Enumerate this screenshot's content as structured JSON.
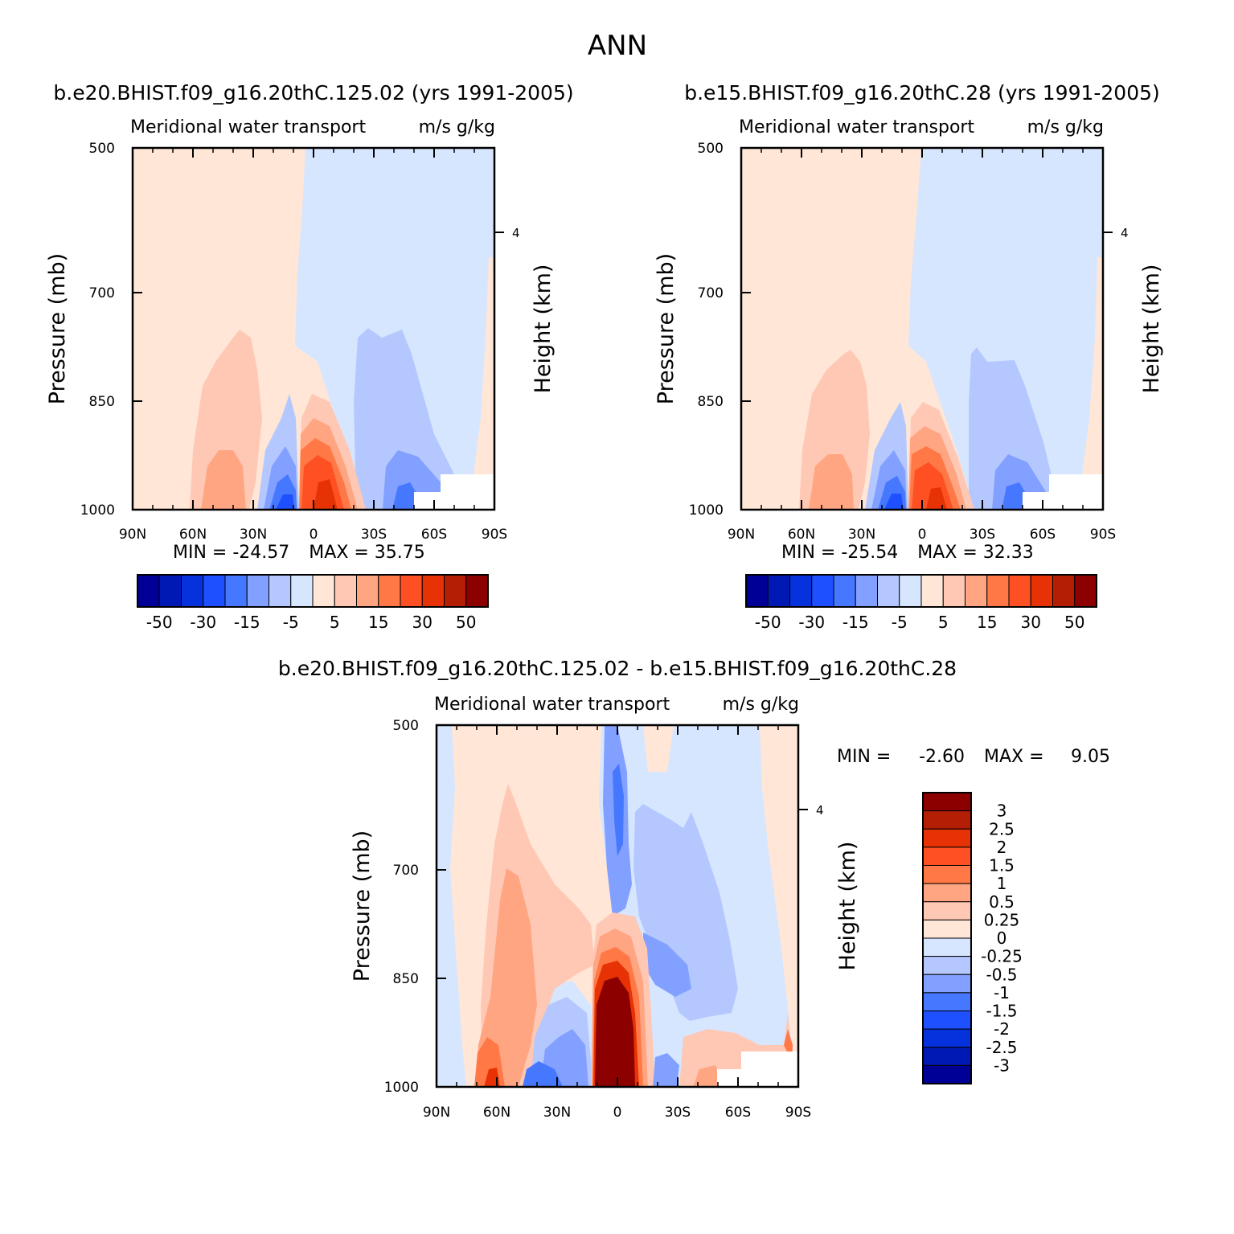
{
  "figure": {
    "title": "ANN"
  },
  "chart_data": [
    {
      "type": "heatmap",
      "title": "b.e20.BHIST.f09_g16.20thC.125.02 (yrs 1991-2005)",
      "variable": "Meridional water transport",
      "units": "m/s g/kg",
      "xlabel": "",
      "ylabel": "Pressure (mb)",
      "ylabel_right": "Height (km)",
      "x_ticks": [
        "90N",
        "60N",
        "30N",
        "0",
        "30S",
        "60S",
        "90S"
      ],
      "y_ticks": [
        "500",
        "700",
        "850",
        "1000"
      ],
      "right_ticks": [
        "4"
      ],
      "ylim": [
        1000,
        500
      ],
      "min_label": "MIN = -24.57",
      "max_label": "MAX = 35.75",
      "min": -24.57,
      "max": 35.75,
      "colorbar": {
        "orientation": "horizontal",
        "labels": [
          "-50",
          "-30",
          "-15",
          "-5",
          "5",
          "15",
          "30",
          "50"
        ],
        "colors": [
          "#000096",
          "#0019b4",
          "#0532dc",
          "#1e50ff",
          "#4678ff",
          "#82a0ff",
          "#b4c8ff",
          "#d7e6ff",
          "#ffe6d7",
          "#ffc8b4",
          "#ffa582",
          "#ff7846",
          "#ff5023",
          "#e63205",
          "#b41e05",
          "#8c0000"
        ]
      }
    },
    {
      "type": "heatmap",
      "title": "b.e15.BHIST.f09_g16.20thC.28 (yrs 1991-2005)",
      "variable": "Meridional water transport",
      "units": "m/s g/kg",
      "xlabel": "",
      "ylabel": "Pressure (mb)",
      "ylabel_right": "Height (km)",
      "x_ticks": [
        "90N",
        "60N",
        "30N",
        "0",
        "30S",
        "60S",
        "90S"
      ],
      "y_ticks": [
        "500",
        "700",
        "850",
        "1000"
      ],
      "right_ticks": [
        "4"
      ],
      "ylim": [
        1000,
        500
      ],
      "min_label": "MIN = -25.54",
      "max_label": "MAX = 32.33",
      "min": -25.54,
      "max": 32.33,
      "colorbar": {
        "orientation": "horizontal",
        "labels": [
          "-50",
          "-30",
          "-15",
          "-5",
          "5",
          "15",
          "30",
          "50"
        ],
        "colors": [
          "#000096",
          "#0019b4",
          "#0532dc",
          "#1e50ff",
          "#4678ff",
          "#82a0ff",
          "#b4c8ff",
          "#d7e6ff",
          "#ffe6d7",
          "#ffc8b4",
          "#ffa582",
          "#ff7846",
          "#ff5023",
          "#e63205",
          "#b41e05",
          "#8c0000"
        ]
      }
    },
    {
      "type": "heatmap",
      "title": "b.e20.BHIST.f09_g16.20thC.125.02 - b.e15.BHIST.f09_g16.20thC.28",
      "variable": "Meridional water transport",
      "units": "m/s g/kg",
      "xlabel": "",
      "ylabel": "Pressure (mb)",
      "ylabel_right": "Height (km)",
      "x_ticks": [
        "90N",
        "60N",
        "30N",
        "0",
        "30S",
        "60S",
        "90S"
      ],
      "y_ticks": [
        "500",
        "700",
        "850",
        "1000"
      ],
      "right_ticks": [
        "4"
      ],
      "ylim": [
        1000,
        500
      ],
      "min_label": "MIN =",
      "min_value": "-2.60",
      "max_label": "MAX =",
      "max_value": "9.05",
      "min": -2.6,
      "max": 9.05,
      "colorbar": {
        "orientation": "vertical",
        "labels": [
          "3",
          "2.5",
          "2",
          "1.5",
          "1",
          "0.5",
          "0.25",
          "0",
          "-0.25",
          "-0.5",
          "-1",
          "-1.5",
          "-2",
          "-2.5",
          "-3"
        ],
        "colors": [
          "#8c0000",
          "#b41e05",
          "#e63205",
          "#ff5023",
          "#ff7846",
          "#ffa582",
          "#ffc8b4",
          "#ffe6d7",
          "#d7e6ff",
          "#b4c8ff",
          "#82a0ff",
          "#4678ff",
          "#1e50ff",
          "#0532dc",
          "#0019b4",
          "#000096"
        ]
      }
    }
  ]
}
